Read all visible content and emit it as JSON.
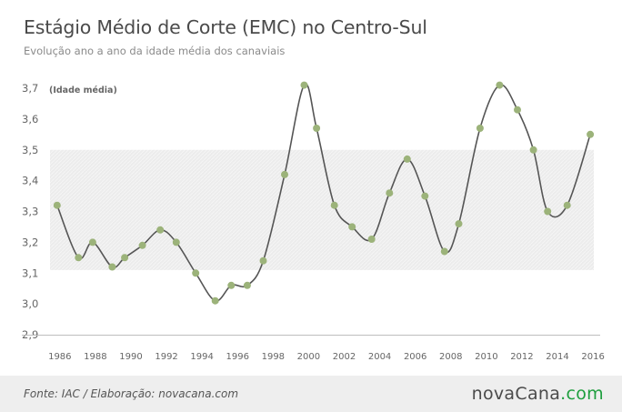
{
  "title": "Estágio Médio de Corte (EMC) no Centro-Sul",
  "subtitle": "Evolução ano a ano da idade média dos canaviais",
  "source": "Fonte: IAC / Elaboração: novacana.com",
  "brand": {
    "part1": "nova",
    "part2": "Cana",
    "part3": ".com"
  },
  "colors": {
    "line": "#555555",
    "point": "#9cb37a",
    "band": "#e9e9e9",
    "brand_accent": "#1e9e3e"
  },
  "chart_data": {
    "type": "line",
    "title": "Estágio Médio de Corte (EMC) no Centro-Sul",
    "subtitle": "Evolução ano a ano da idade média dos canaviais",
    "xlabel": "",
    "ylabel": "(Idade média)",
    "ylim": [
      2.9,
      3.7
    ],
    "yticks": [
      "2,9",
      "3,0",
      "3,1",
      "3,2",
      "3,3",
      "3,4",
      "3,5",
      "3,6",
      "3,7"
    ],
    "xlim": [
      1985.6,
      2016.2
    ],
    "xticks": [
      "1986",
      "1988",
      "1990",
      "1992",
      "1994",
      "1996",
      "1998",
      "2000",
      "2002",
      "2004",
      "2006",
      "2008",
      "2010",
      "2012",
      "2014",
      "2016"
    ],
    "shaded_band": [
      3.11,
      3.5
    ],
    "grid": false,
    "series": [
      {
        "x": [
          1986,
          1987.2,
          1988,
          1989.1,
          1989.8,
          1990.8,
          1991.8,
          1992.7,
          1993.8,
          1994.9,
          1995.8,
          1996.7,
          1997.6,
          1998.8,
          1999.9,
          2000.6,
          2001.6,
          2002.6,
          2003.7,
          2004.7,
          2005.7,
          2006.7,
          2007.8,
          2008.6,
          2009.8,
          2010.9,
          2011.9,
          2012.8,
          2013.6,
          2014.7,
          2016
        ],
        "y": [
          3.32,
          3.15,
          3.2,
          3.12,
          3.15,
          3.19,
          3.24,
          3.2,
          3.1,
          3.01,
          3.06,
          3.06,
          3.14,
          3.42,
          3.71,
          3.57,
          3.32,
          3.25,
          3.21,
          3.36,
          3.47,
          3.35,
          3.17,
          3.26,
          3.57,
          3.71,
          3.63,
          3.5,
          3.3,
          3.32,
          3.55
        ]
      }
    ]
  }
}
